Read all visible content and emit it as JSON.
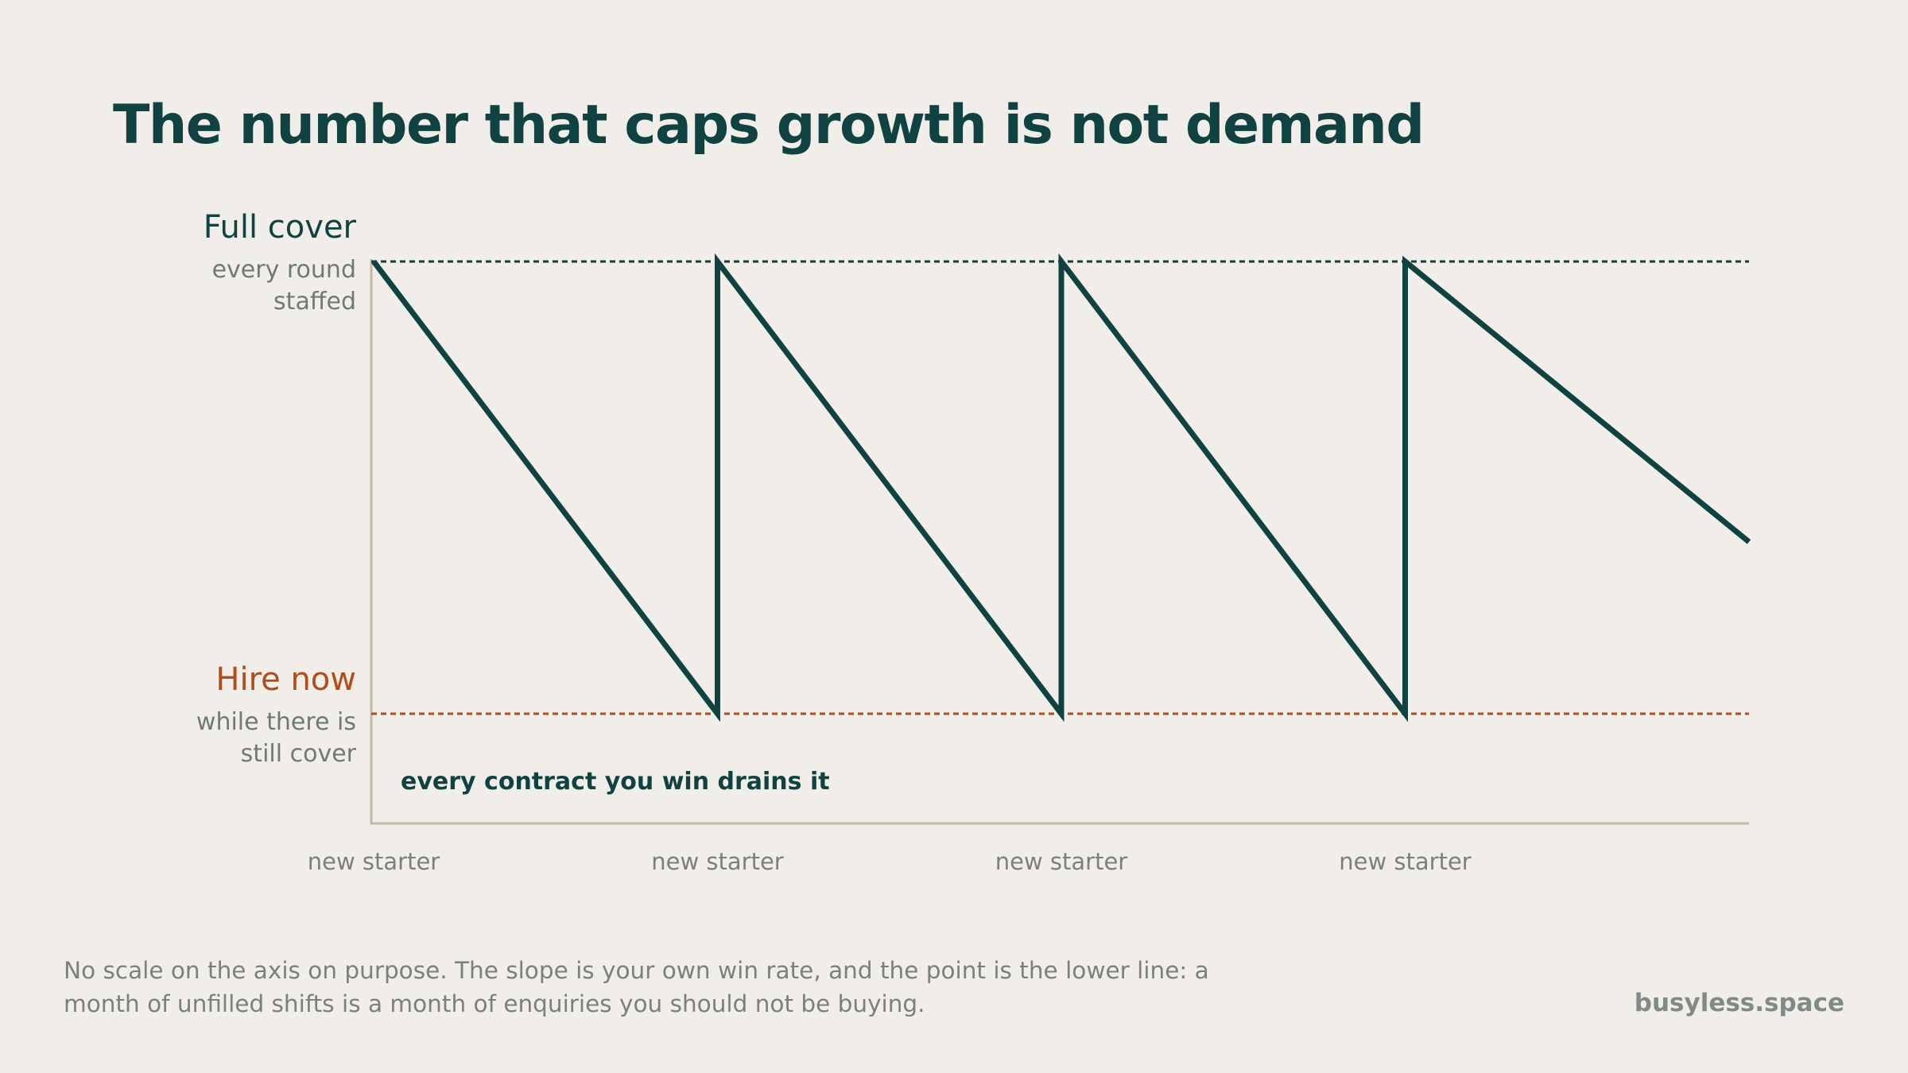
{
  "title": "The number that caps growth is not demand",
  "levels": {
    "top": {
      "title": "Full cover",
      "sub": [
        "every round",
        "staffed"
      ],
      "color": "#0f4240"
    },
    "bottom": {
      "title": "Hire now",
      "sub": [
        "while there is",
        "still cover"
      ],
      "color": "#b14c1c"
    }
  },
  "annotation": "every contract you win drains it",
  "footnote": [
    "No scale on the axis on purpose. The slope is your own win rate, and the point is the lower line: a",
    "month of unfilled shifts is a month of enquiries you should not be buying."
  ],
  "brand": "busyless.space",
  "colors": {
    "line": "#0f4240",
    "accent": "#b14c1c",
    "axis": "#c2bba8",
    "background": "#f1eee9"
  },
  "chart_data": {
    "type": "line",
    "series": [
      {
        "values": [
          {
            "x": 0,
            "y": 1
          },
          {
            "x": 1,
            "y": 0
          },
          {
            "x": 1,
            "y": 1
          },
          {
            "x": 2,
            "y": 0
          },
          {
            "x": 2,
            "y": 1
          },
          {
            "x": 3,
            "y": 0
          },
          {
            "x": 3,
            "y": 1
          },
          {
            "x": 4,
            "y": 0.38
          }
        ]
      }
    ],
    "ticks": [
      {
        "x": 0,
        "label": "new starter"
      },
      {
        "x": 1,
        "label": "new starter"
      },
      {
        "x": 2,
        "label": "new starter"
      },
      {
        "x": 3,
        "label": "new starter"
      }
    ],
    "reference_lines": [
      {
        "y": 1,
        "label": "Full cover",
        "style": "dashed"
      },
      {
        "y": 0,
        "label": "Hire now",
        "style": "dashed"
      }
    ],
    "xlim": [
      0,
      4
    ],
    "ylim": [
      -0.245,
      1
    ],
    "grid": false
  }
}
